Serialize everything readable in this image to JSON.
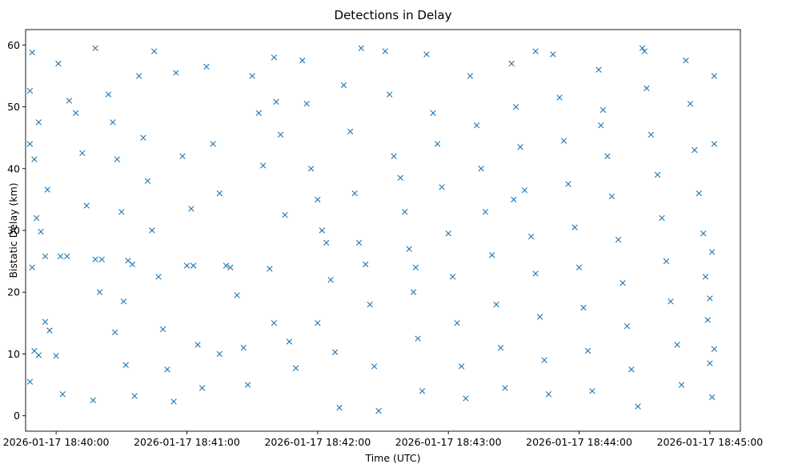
{
  "chart_data": {
    "type": "scatter",
    "title": "Detections in Delay",
    "xlabel": "Time (UTC)",
    "ylabel": "Bistatic Delay (km)",
    "marker": "x",
    "color": "#1f77b4",
    "grid": false,
    "legend": "none",
    "xlim": [
      "2026-01-17 18:39:46",
      "2026-01-17 18:45:14"
    ],
    "ylim": [
      -2.5,
      62.5
    ],
    "xticks": [
      "2026-01-17 18:40:00",
      "2026-01-17 18:41:00",
      "2026-01-17 18:42:00",
      "2026-01-17 18:43:00",
      "2026-01-17 18:44:00",
      "2026-01-17 18:45:00"
    ],
    "yticks": [
      0,
      10,
      20,
      30,
      40,
      50,
      60
    ],
    "series": [
      {
        "points": [
          [
            "18:39:49",
            58.8
          ],
          [
            "18:39:48",
            52.6
          ],
          [
            "18:39:48",
            44.0
          ],
          [
            "18:39:50",
            41.5
          ],
          [
            "18:39:52",
            47.5
          ],
          [
            "18:39:49",
            24.0
          ],
          [
            "18:39:51",
            32.0
          ],
          [
            "18:39:53",
            29.8
          ],
          [
            "18:39:55",
            25.8
          ],
          [
            "18:39:50",
            10.5
          ],
          [
            "18:39:48",
            5.5
          ],
          [
            "18:39:52",
            9.8
          ],
          [
            "18:39:55",
            15.2
          ],
          [
            "18:39:57",
            13.8
          ],
          [
            "18:40:00",
            9.7
          ],
          [
            "18:40:03",
            3.5
          ],
          [
            "18:39:56",
            36.6
          ],
          [
            "18:40:02",
            25.8
          ],
          [
            "18:40:05",
            25.8
          ],
          [
            "18:40:01",
            57.0
          ],
          [
            "18:40:06",
            51.0
          ],
          [
            "18:40:09",
            49.0
          ],
          [
            "18:40:12",
            42.5
          ],
          [
            "18:40:14",
            34.0
          ],
          [
            "18:40:18",
            25.3
          ],
          [
            "18:40:21",
            25.3
          ],
          [
            "18:40:17",
            2.5
          ],
          [
            "18:40:18",
            59.5
          ],
          [
            "18:40:24",
            52.0
          ],
          [
            "18:40:26",
            47.5
          ],
          [
            "18:40:28",
            41.5
          ],
          [
            "18:40:30",
            33.0
          ],
          [
            "18:40:33",
            25.1
          ],
          [
            "18:40:35",
            24.5
          ],
          [
            "18:40:31",
            18.5
          ],
          [
            "18:40:27",
            13.5
          ],
          [
            "18:40:32",
            8.2
          ],
          [
            "18:40:36",
            3.2
          ],
          [
            "18:40:38",
            55.0
          ],
          [
            "18:40:40",
            45.0
          ],
          [
            "18:40:42",
            38.0
          ],
          [
            "18:40:44",
            30.0
          ],
          [
            "18:40:47",
            22.5
          ],
          [
            "18:40:49",
            14.0
          ],
          [
            "18:40:51",
            7.5
          ],
          [
            "18:40:54",
            2.3
          ],
          [
            "18:40:55",
            55.5
          ],
          [
            "18:40:58",
            42.0
          ],
          [
            "18:41:00",
            24.3
          ],
          [
            "18:41:03",
            24.3
          ],
          [
            "18:41:02",
            33.5
          ],
          [
            "18:41:05",
            11.5
          ],
          [
            "18:41:07",
            4.5
          ],
          [
            "18:41:09",
            56.5
          ],
          [
            "18:41:12",
            44.0
          ],
          [
            "18:41:15",
            36.0
          ],
          [
            "18:41:18",
            24.3
          ],
          [
            "18:41:20",
            24.0
          ],
          [
            "18:41:23",
            19.5
          ],
          [
            "18:41:26",
            11.0
          ],
          [
            "18:41:28",
            5.0
          ],
          [
            "18:41:30",
            55.0
          ],
          [
            "18:41:33",
            49.0
          ],
          [
            "18:41:35",
            40.5
          ],
          [
            "18:41:38",
            23.8
          ],
          [
            "18:41:40",
            15.0
          ],
          [
            "18:41:41",
            50.8
          ],
          [
            "18:41:43",
            45.5
          ],
          [
            "18:41:45",
            32.5
          ],
          [
            "18:41:47",
            12.0
          ],
          [
            "18:41:50",
            7.7
          ],
          [
            "18:41:53",
            57.5
          ],
          [
            "18:41:55",
            50.5
          ],
          [
            "18:41:57",
            40.0
          ],
          [
            "18:42:00",
            35.0
          ],
          [
            "18:42:02",
            30.0
          ],
          [
            "18:42:04",
            28.0
          ],
          [
            "18:42:06",
            22.0
          ],
          [
            "18:42:08",
            10.3
          ],
          [
            "18:42:10",
            1.3
          ],
          [
            "18:42:12",
            53.5
          ],
          [
            "18:42:15",
            46.0
          ],
          [
            "18:42:17",
            36.0
          ],
          [
            "18:42:19",
            28.0
          ],
          [
            "18:42:22",
            24.5
          ],
          [
            "18:42:24",
            18.0
          ],
          [
            "18:42:26",
            8.0
          ],
          [
            "18:42:28",
            0.8
          ],
          [
            "18:42:31",
            59.0
          ],
          [
            "18:42:33",
            52.0
          ],
          [
            "18:42:35",
            42.0
          ],
          [
            "18:42:38",
            38.5
          ],
          [
            "18:42:40",
            33.0
          ],
          [
            "18:42:42",
            27.0
          ],
          [
            "18:42:44",
            20.0
          ],
          [
            "18:42:46",
            12.5
          ],
          [
            "18:42:48",
            4.0
          ],
          [
            "18:42:50",
            58.5
          ],
          [
            "18:42:53",
            49.0
          ],
          [
            "18:42:55",
            44.0
          ],
          [
            "18:42:57",
            37.0
          ],
          [
            "18:43:00",
            29.5
          ],
          [
            "18:43:02",
            22.5
          ],
          [
            "18:43:04",
            15.0
          ],
          [
            "18:43:06",
            8.0
          ],
          [
            "18:43:08",
            2.8
          ],
          [
            "18:43:10",
            55.0
          ],
          [
            "18:43:13",
            47.0
          ],
          [
            "18:43:15",
            40.0
          ],
          [
            "18:43:17",
            33.0
          ],
          [
            "18:43:20",
            26.0
          ],
          [
            "18:43:22",
            18.0
          ],
          [
            "18:43:24",
            11.0
          ],
          [
            "18:43:26",
            4.5
          ],
          [
            "18:43:29",
            57.0
          ],
          [
            "18:43:31",
            50.0
          ],
          [
            "18:43:33",
            43.5
          ],
          [
            "18:43:35",
            36.5
          ],
          [
            "18:43:38",
            29.0
          ],
          [
            "18:43:40",
            23.0
          ],
          [
            "18:43:42",
            16.0
          ],
          [
            "18:43:44",
            9.0
          ],
          [
            "18:43:46",
            3.5
          ],
          [
            "18:43:48",
            58.5
          ],
          [
            "18:43:51",
            51.5
          ],
          [
            "18:43:53",
            44.5
          ],
          [
            "18:43:55",
            37.5
          ],
          [
            "18:43:58",
            30.5
          ],
          [
            "18:44:00",
            24.0
          ],
          [
            "18:44:02",
            17.5
          ],
          [
            "18:44:04",
            10.5
          ],
          [
            "18:44:06",
            4.0
          ],
          [
            "18:44:09",
            56.0
          ],
          [
            "18:44:11",
            49.5
          ],
          [
            "18:44:13",
            42.0
          ],
          [
            "18:44:15",
            35.5
          ],
          [
            "18:44:18",
            28.5
          ],
          [
            "18:44:20",
            21.5
          ],
          [
            "18:44:22",
            14.5
          ],
          [
            "18:44:24",
            7.5
          ],
          [
            "18:44:27",
            1.5
          ],
          [
            "18:44:29",
            59.5
          ],
          [
            "18:44:31",
            53.0
          ],
          [
            "18:44:33",
            45.5
          ],
          [
            "18:44:36",
            39.0
          ],
          [
            "18:44:38",
            32.0
          ],
          [
            "18:44:40",
            25.0
          ],
          [
            "18:44:42",
            18.5
          ],
          [
            "18:44:45",
            11.5
          ],
          [
            "18:44:47",
            5.0
          ],
          [
            "18:44:49",
            57.5
          ],
          [
            "18:44:51",
            50.5
          ],
          [
            "18:44:53",
            43.0
          ],
          [
            "18:44:55",
            36.0
          ],
          [
            "18:44:57",
            29.5
          ],
          [
            "18:44:58",
            22.5
          ],
          [
            "18:44:59",
            15.5
          ],
          [
            "18:45:00",
            8.5
          ],
          [
            "18:45:01",
            3.0
          ],
          [
            "18:45:02",
            55.0
          ],
          [
            "18:45:02",
            44.0
          ],
          [
            "18:45:01",
            26.5
          ],
          [
            "18:45:00",
            19.0
          ],
          [
            "18:45:02",
            10.8
          ],
          [
            "18:40:45",
            59.0
          ],
          [
            "18:41:40",
            58.0
          ],
          [
            "18:42:20",
            59.5
          ],
          [
            "18:43:40",
            59.0
          ],
          [
            "18:44:30",
            59.0
          ],
          [
            "18:40:20",
            20.0
          ],
          [
            "18:41:15",
            10.0
          ],
          [
            "18:42:00",
            15.0
          ],
          [
            "18:42:45",
            24.0
          ],
          [
            "18:43:30",
            35.0
          ],
          [
            "18:44:10",
            47.0
          ]
        ]
      }
    ]
  }
}
